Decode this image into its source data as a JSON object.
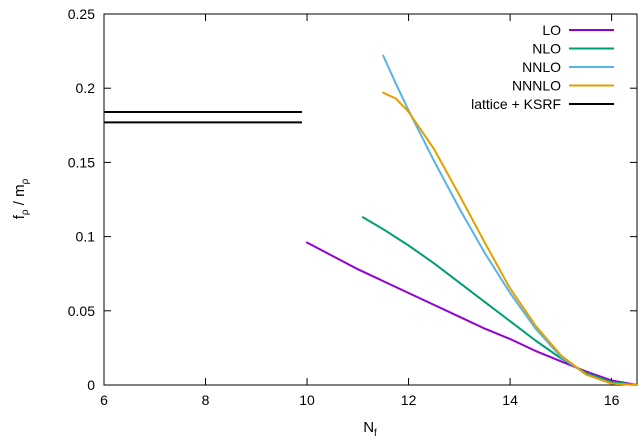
{
  "chart_data": {
    "type": "line",
    "title": "",
    "xlabel": {
      "main": "N",
      "sub": "f"
    },
    "ylabel": {
      "parts": [
        {
          "t": "f",
          "sub": false
        },
        {
          "t": "ρ",
          "sub": true
        },
        {
          "t": " / m",
          "sub": false
        },
        {
          "t": "ρ",
          "sub": true
        }
      ]
    },
    "xlim": [
      6,
      16.5
    ],
    "ylim": [
      0,
      0.25
    ],
    "grid": false,
    "legend_position": "top-right",
    "xticks": [
      {
        "value": 6,
        "label": "6"
      },
      {
        "value": 8,
        "label": "8"
      },
      {
        "value": 10,
        "label": "10"
      },
      {
        "value": 12,
        "label": "12"
      },
      {
        "value": 14,
        "label": "14"
      },
      {
        "value": 16,
        "label": "16"
      }
    ],
    "yticks": [
      {
        "value": 0,
        "label": "0"
      },
      {
        "value": 0.05,
        "label": "0.05"
      },
      {
        "value": 0.1,
        "label": "0.1"
      },
      {
        "value": 0.15,
        "label": "0.15"
      },
      {
        "value": 0.2,
        "label": "0.2"
      },
      {
        "value": 0.25,
        "label": "0.25"
      }
    ],
    "series": [
      {
        "name": "LO",
        "color": "#9400d3",
        "x": [
          10.0,
          10.5,
          11.0,
          11.5,
          12.0,
          12.5,
          13.0,
          13.5,
          14.0,
          14.5,
          15.0,
          15.5,
          16.0,
          16.5
        ],
        "y": [
          0.096,
          0.087,
          0.078,
          0.07,
          0.062,
          0.054,
          0.046,
          0.038,
          0.031,
          0.023,
          0.016,
          0.009,
          0.003,
          0.0
        ]
      },
      {
        "name": "NLO",
        "color": "#009e73",
        "x": [
          11.1,
          11.5,
          12.0,
          12.5,
          13.0,
          13.5,
          14.0,
          14.5,
          15.0,
          15.5,
          16.0,
          16.5
        ],
        "y": [
          0.113,
          0.105,
          0.094,
          0.082,
          0.069,
          0.056,
          0.043,
          0.03,
          0.018,
          0.008,
          0.002,
          0.0
        ]
      },
      {
        "name": "NNLO",
        "color": "#56b4e9",
        "x": [
          11.5,
          11.75,
          12.0,
          12.5,
          13.0,
          13.5,
          14.0,
          14.5,
          15.0,
          15.5,
          16.0,
          16.5
        ],
        "y": [
          0.222,
          0.203,
          0.185,
          0.151,
          0.119,
          0.089,
          0.062,
          0.038,
          0.019,
          0.007,
          0.001,
          0.0
        ]
      },
      {
        "name": "NNNLO",
        "color": "#e69f00",
        "x": [
          11.5,
          11.75,
          12.0,
          12.5,
          13.0,
          13.5,
          14.0,
          14.5,
          15.0,
          15.5,
          16.0,
          16.5
        ],
        "y": [
          0.197,
          0.193,
          0.184,
          0.159,
          0.128,
          0.096,
          0.065,
          0.04,
          0.02,
          0.007,
          0.001,
          0.0
        ]
      }
    ],
    "reference_band": {
      "name": "lattice + KSRF",
      "color": "#000000",
      "x": [
        6,
        9.9
      ],
      "y_values": [
        0.177,
        0.184
      ]
    }
  }
}
